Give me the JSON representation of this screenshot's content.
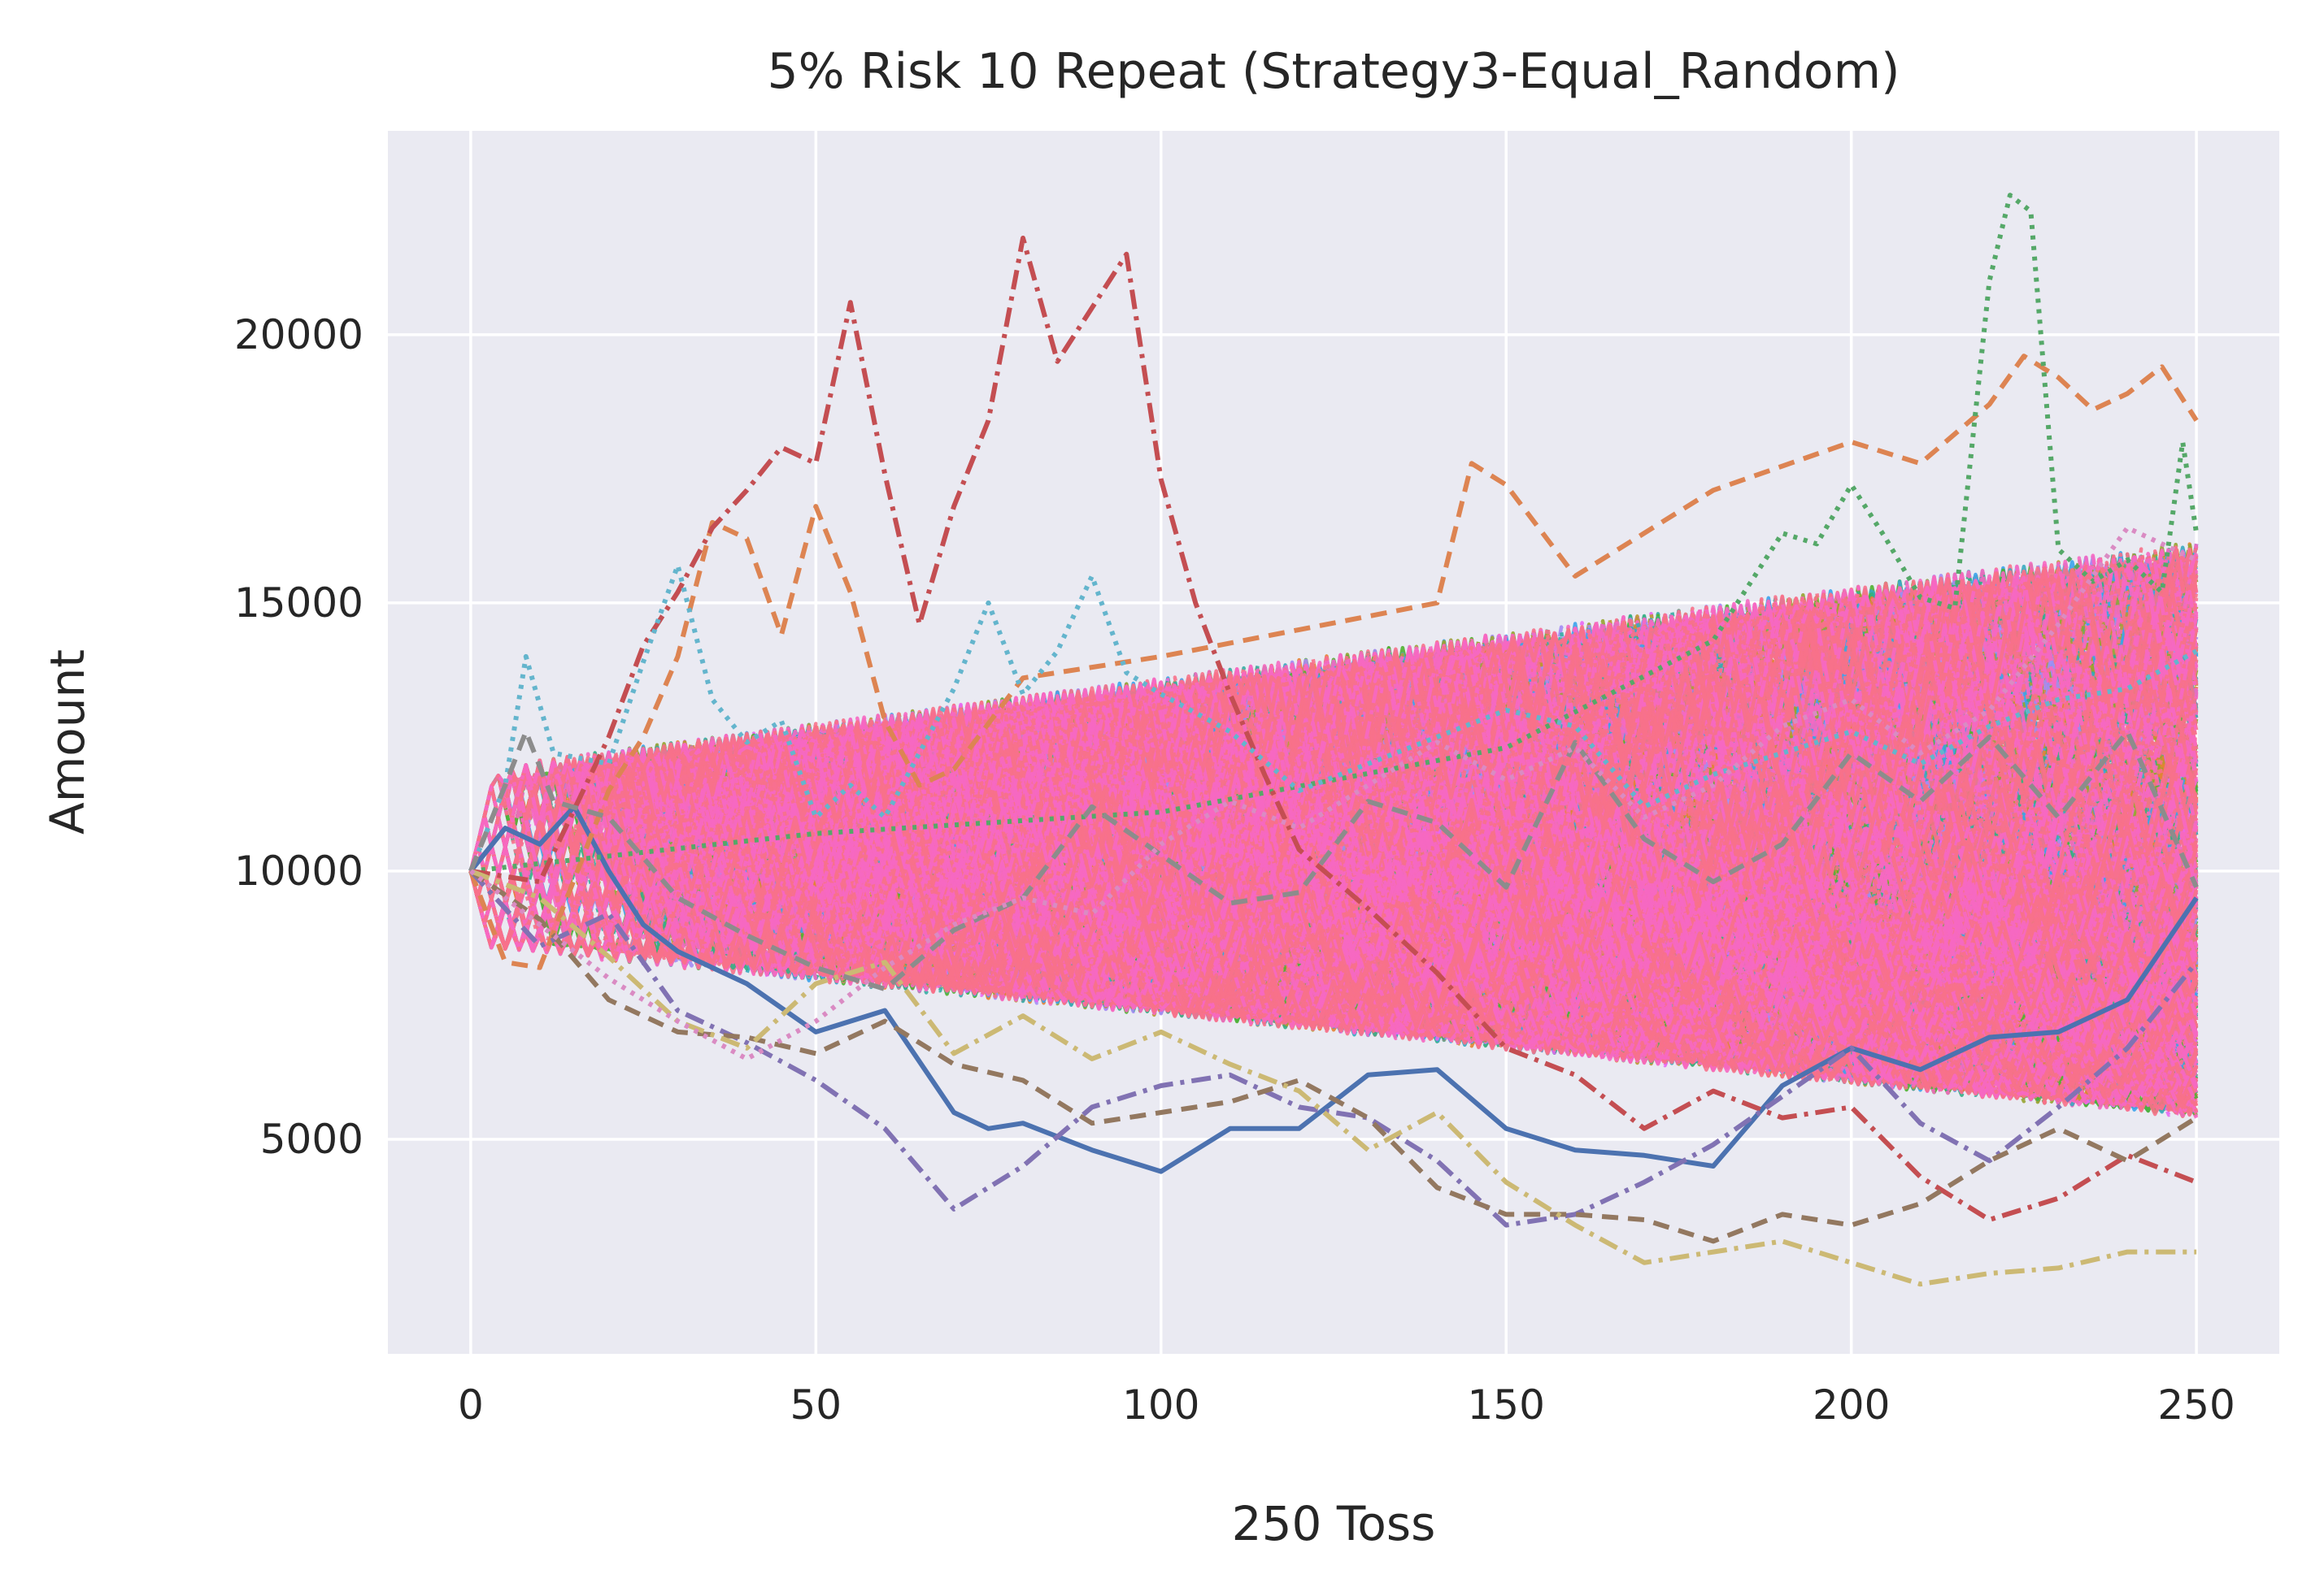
{
  "chart_data": {
    "type": "line",
    "title": "5% Risk 10 Repeat (Strategy3-Equal_Random)",
    "xlabel": "250 Toss",
    "ylabel": "Amount",
    "xlim": [
      -12,
      262
    ],
    "ylim": [
      1000,
      23800
    ],
    "xticks": [
      0,
      50,
      100,
      150,
      200,
      250
    ],
    "yticks": [
      5000,
      10000,
      15000,
      20000
    ],
    "xtick_labels": [
      "0",
      "50",
      "100",
      "150",
      "200",
      "250"
    ],
    "ytick_labels": [
      "5000",
      "10000",
      "15000",
      "20000"
    ],
    "grid": true,
    "legend": "none",
    "colors": {
      "plot_background": "#eaeaf2",
      "grid": "#ffffff",
      "text": "#262626",
      "palette": [
        "#4c72b0",
        "#dd8452",
        "#55a868",
        "#c44e52",
        "#8172b3",
        "#937860",
        "#da8bc3",
        "#8c8c8c",
        "#ccb974",
        "#64b5cd",
        "#f77189",
        "#e68332",
        "#bb9832",
        "#97a431",
        "#50b131",
        "#34af84",
        "#36ada4",
        "#38aabf",
        "#3ba3ec",
        "#a48cf4",
        "#e866f4",
        "#f668c2"
      ]
    },
    "highlighted_series": [
      {
        "style": "solid",
        "color": "#4c72b0",
        "x": [
          0,
          5,
          10,
          15,
          20,
          25,
          30,
          40,
          50,
          60,
          70,
          75,
          80,
          90,
          100,
          110,
          120,
          130,
          140,
          150,
          160,
          170,
          180,
          190,
          200,
          210,
          220,
          230,
          240,
          250
        ],
        "y": [
          10000,
          10800,
          10500,
          11200,
          10000,
          9000,
          8500,
          7900,
          7000,
          7400,
          5500,
          5200,
          5300,
          4800,
          4400,
          5200,
          5200,
          6200,
          6300,
          5200,
          4800,
          4700,
          4500,
          6000,
          6700,
          6300,
          6900,
          7000,
          7600,
          9500
        ]
      },
      {
        "style": "dashed",
        "color": "#dd8452",
        "x": [
          0,
          5,
          10,
          20,
          25,
          30,
          35,
          40,
          45,
          50,
          55,
          60,
          65,
          70,
          80,
          100,
          120,
          140,
          145,
          150,
          160,
          180,
          200,
          210,
          220,
          225,
          230,
          235,
          240,
          245,
          250
        ],
        "y": [
          10000,
          8300,
          8200,
          11500,
          12500,
          14000,
          16500,
          16200,
          14400,
          16800,
          15200,
          12800,
          11600,
          11900,
          13600,
          14000,
          14500,
          15000,
          17600,
          17200,
          15500,
          17100,
          18000,
          17600,
          18700,
          19600,
          19200,
          18600,
          18900,
          19400,
          18400
        ]
      },
      {
        "style": "dotted",
        "color": "#55a868",
        "x": [
          0,
          50,
          100,
          150,
          180,
          190,
          195,
          200,
          205,
          210,
          215,
          220,
          223,
          226,
          230,
          235,
          240,
          245,
          248,
          250
        ],
        "y": [
          10000,
          10700,
          11100,
          12300,
          14300,
          16300,
          16100,
          17200,
          16200,
          15100,
          14900,
          21000,
          22600,
          22300,
          16000,
          15400,
          15800,
          15200,
          18000,
          16300
        ]
      },
      {
        "style": "dashdot",
        "color": "#c44e52",
        "x": [
          0,
          10,
          20,
          25,
          30,
          35,
          40,
          45,
          50,
          55,
          60,
          65,
          70,
          75,
          80,
          85,
          90,
          95,
          100,
          105,
          110,
          115,
          120,
          130,
          140,
          150,
          160,
          170,
          180,
          190,
          200,
          210,
          220,
          230,
          240,
          250
        ],
        "y": [
          10000,
          9800,
          12500,
          14200,
          15200,
          16400,
          17100,
          17900,
          17600,
          20600,
          17400,
          14600,
          16800,
          18400,
          21800,
          19500,
          20500,
          21500,
          17300,
          15000,
          13300,
          11800,
          10400,
          9300,
          8100,
          6700,
          6200,
          5200,
          5900,
          5400,
          5600,
          4300,
          3500,
          3900,
          4700,
          4200
        ]
      },
      {
        "style": "dashdot",
        "color": "#8172b3",
        "x": [
          0,
          10,
          20,
          30,
          40,
          50,
          60,
          70,
          80,
          90,
          100,
          110,
          120,
          130,
          140,
          150,
          160,
          170,
          180,
          190,
          200,
          210,
          220,
          230,
          240,
          250
        ],
        "y": [
          10000,
          8600,
          9200,
          7400,
          6800,
          6100,
          5200,
          3700,
          4500,
          5600,
          6000,
          6200,
          5600,
          5400,
          4600,
          3400,
          3600,
          4200,
          4900,
          5800,
          6700,
          5300,
          4600,
          5600,
          6700,
          8300
        ]
      },
      {
        "style": "dashed",
        "color": "#937860",
        "x": [
          0,
          10,
          20,
          30,
          40,
          50,
          60,
          70,
          80,
          90,
          100,
          110,
          120,
          130,
          140,
          150,
          160,
          170,
          180,
          190,
          200,
          210,
          220,
          230,
          240,
          250
        ],
        "y": [
          10000,
          9100,
          7600,
          7000,
          6900,
          6600,
          7200,
          6400,
          6100,
          5300,
          5500,
          5700,
          6100,
          5400,
          4100,
          3600,
          3600,
          3500,
          3100,
          3600,
          3400,
          3800,
          4600,
          5200,
          4600,
          5400
        ]
      },
      {
        "style": "dashdot",
        "color": "#ccb974",
        "x": [
          0,
          10,
          20,
          30,
          40,
          50,
          60,
          70,
          80,
          90,
          100,
          110,
          120,
          130,
          140,
          150,
          160,
          170,
          180,
          190,
          200,
          210,
          220,
          230,
          240,
          250
        ],
        "y": [
          10000,
          9500,
          8400,
          7200,
          6700,
          7900,
          8300,
          6600,
          7300,
          6500,
          7000,
          6400,
          5900,
          4800,
          5500,
          4200,
          3400,
          2700,
          2900,
          3100,
          2700,
          2300,
          2500,
          2600,
          2900,
          2900
        ]
      },
      {
        "style": "dotted",
        "color": "#64b5cd",
        "x": [
          0,
          5,
          8,
          12,
          20,
          25,
          30,
          35,
          40,
          45,
          50,
          55,
          60,
          70,
          75,
          80,
          85,
          90,
          95,
          100,
          110,
          120,
          130,
          140,
          150,
          160,
          170,
          180,
          190,
          200,
          210,
          220,
          230,
          240,
          250
        ],
        "y": [
          10000,
          11600,
          14000,
          12200,
          12000,
          13900,
          15700,
          13200,
          12400,
          12800,
          11000,
          11600,
          11000,
          13400,
          15000,
          13300,
          14100,
          15500,
          13700,
          13300,
          12600,
          11500,
          12000,
          12500,
          13000,
          12700,
          11200,
          11800,
          12200,
          12600,
          12000,
          12700,
          13200,
          13400,
          14100
        ]
      },
      {
        "style": "dashed",
        "color": "#8c8c8c",
        "x": [
          0,
          5,
          8,
          12,
          20,
          30,
          40,
          50,
          60,
          70,
          80,
          90,
          100,
          110,
          120,
          130,
          140,
          150,
          160,
          170,
          180,
          190,
          200,
          210,
          220,
          230,
          240,
          250
        ],
        "y": [
          10000,
          11600,
          12600,
          11300,
          11000,
          9500,
          8800,
          8200,
          7800,
          8900,
          9500,
          11200,
          10300,
          9400,
          9600,
          11300,
          10900,
          9700,
          12400,
          10600,
          9800,
          10500,
          12200,
          11300,
          12500,
          11000,
          12600,
          9700
        ]
      },
      {
        "style": "dotted",
        "color": "#da8bc3",
        "x": [
          0,
          10,
          20,
          30,
          40,
          50,
          60,
          70,
          80,
          90,
          100,
          110,
          120,
          130,
          140,
          150,
          160,
          170,
          180,
          190,
          200,
          210,
          220,
          230,
          240,
          250
        ],
        "y": [
          10000,
          9000,
          8000,
          7200,
          6500,
          7200,
          8200,
          9000,
          9500,
          9200,
          10500,
          11300,
          10800,
          11600,
          12400,
          11700,
          12300,
          11000,
          11600,
          12700,
          13200,
          12200,
          13000,
          14600,
          16400,
          15800
        ]
      }
    ]
  }
}
